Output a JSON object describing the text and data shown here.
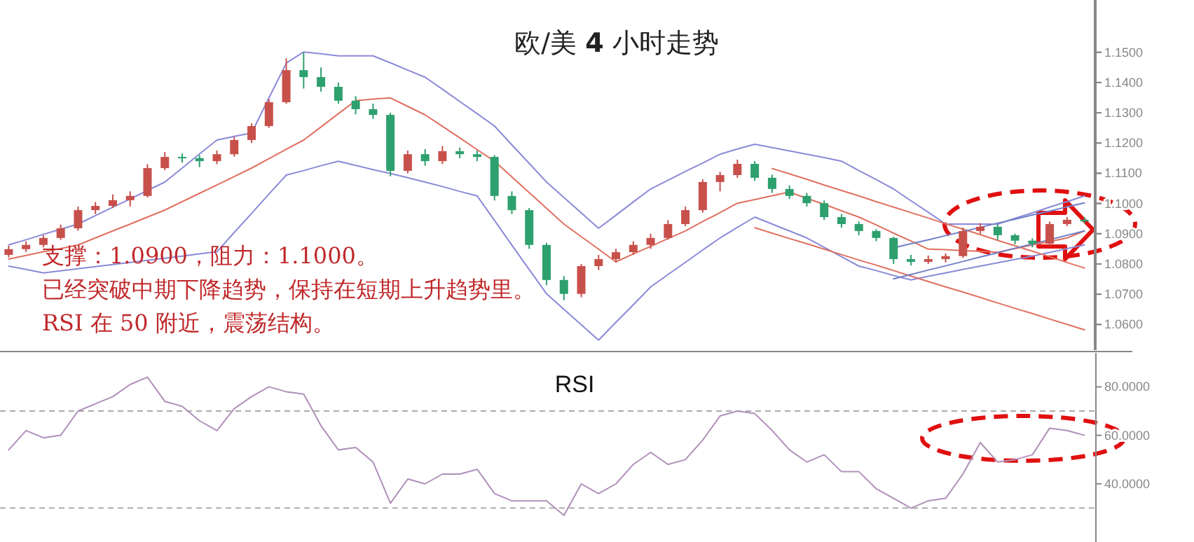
{
  "chart_data": [
    {
      "type": "candlestick",
      "title": "欧/美 **4** 小时走势",
      "ylim": [
        1.0515,
        1.1673
      ],
      "yticks": [
        {
          "value": 1.06,
          "label": "1.0600"
        },
        {
          "value": 1.07,
          "label": "1.0700"
        },
        {
          "value": 1.08,
          "label": "1.0800"
        },
        {
          "value": 1.09,
          "label": "1.0900"
        },
        {
          "value": 1.1,
          "label": "1.1000"
        },
        {
          "value": 1.11,
          "label": "1.1100"
        },
        {
          "value": 1.12,
          "label": "1.1200"
        },
        {
          "value": 1.13,
          "label": "1.1300"
        },
        {
          "value": 1.14,
          "label": "1.1400"
        },
        {
          "value": 1.15,
          "label": "1.1500"
        }
      ],
      "categories": [
        null,
        null,
        null,
        null,
        null,
        null,
        null,
        null,
        null,
        null,
        null,
        null,
        null,
        null,
        null,
        null,
        null,
        null,
        null,
        null,
        null,
        null,
        null,
        null,
        null,
        null,
        null,
        null,
        null,
        null,
        null,
        null,
        null,
        null,
        null,
        null,
        null,
        null,
        null,
        null,
        null,
        null,
        null,
        null,
        null,
        null,
        null,
        null,
        null,
        null,
        null,
        null,
        null,
        null,
        null,
        null,
        null,
        null,
        null,
        null,
        null,
        null,
        null
      ],
      "ohlc": [
        [
          1.083,
          1.086,
          1.0822,
          1.0849
        ],
        [
          1.0849,
          1.0875,
          1.084,
          1.0863
        ],
        [
          1.0863,
          1.0895,
          1.0855,
          1.0886
        ],
        [
          1.0886,
          1.093,
          1.088,
          1.0918
        ],
        [
          1.0918,
          1.099,
          1.091,
          1.0978
        ],
        [
          1.0978,
          1.1005,
          1.0965,
          1.0992
        ],
        [
          1.0992,
          1.103,
          1.0985,
          1.1011
        ],
        [
          1.1011,
          1.104,
          1.099,
          1.1025
        ],
        [
          1.1025,
          1.113,
          1.102,
          1.1117
        ],
        [
          1.1117,
          1.117,
          1.111,
          1.1154
        ],
        [
          1.1154,
          1.1165,
          1.1135,
          1.115
        ],
        [
          1.115,
          1.116,
          1.112,
          1.114
        ],
        [
          1.114,
          1.1175,
          1.113,
          1.1163
        ],
        [
          1.1163,
          1.122,
          1.1155,
          1.121
        ],
        [
          1.121,
          1.1265,
          1.12,
          1.1256
        ],
        [
          1.1256,
          1.1345,
          1.125,
          1.1335
        ],
        [
          1.1335,
          1.148,
          1.133,
          1.1441
        ],
        [
          1.1441,
          1.15,
          1.138,
          1.1418
        ],
        [
          1.1418,
          1.145,
          1.137,
          1.1386
        ],
        [
          1.1386,
          1.14,
          1.133,
          1.134
        ],
        [
          1.134,
          1.1355,
          1.1295,
          1.1312
        ],
        [
          1.1312,
          1.133,
          1.128,
          1.1293
        ],
        [
          1.1293,
          1.13,
          1.109,
          1.1108
        ],
        [
          1.1108,
          1.1175,
          1.11,
          1.1163
        ],
        [
          1.1163,
          1.118,
          1.1125,
          1.114
        ],
        [
          1.114,
          1.119,
          1.113,
          1.1173
        ],
        [
          1.1173,
          1.1185,
          1.115,
          1.1163
        ],
        [
          1.1163,
          1.1175,
          1.114,
          1.1154
        ],
        [
          1.1154,
          1.116,
          1.101,
          1.1025
        ],
        [
          1.1025,
          1.104,
          1.0965,
          1.0978
        ],
        [
          1.0978,
          1.0985,
          1.085,
          1.0863
        ],
        [
          1.0863,
          1.087,
          1.073,
          1.0747
        ],
        [
          1.0747,
          1.076,
          1.068,
          1.0701
        ],
        [
          1.0701,
          1.08,
          1.069,
          1.0793
        ],
        [
          1.0793,
          1.083,
          1.078,
          1.0816
        ],
        [
          1.0816,
          1.085,
          1.0805,
          1.0839
        ],
        [
          1.0839,
          1.0875,
          1.083,
          1.0863
        ],
        [
          1.0863,
          1.09,
          1.085,
          1.0886
        ],
        [
          1.0886,
          1.0945,
          1.088,
          1.0932
        ],
        [
          1.0932,
          1.099,
          1.0925,
          1.0978
        ],
        [
          1.0978,
          1.108,
          1.097,
          1.1071
        ],
        [
          1.1071,
          1.1105,
          1.104,
          1.1094
        ],
        [
          1.1094,
          1.1145,
          1.1085,
          1.1131
        ],
        [
          1.1131,
          1.114,
          1.1075,
          1.1085
        ],
        [
          1.1085,
          1.1095,
          1.1035,
          1.1048
        ],
        [
          1.1048,
          1.106,
          1.1015,
          1.1025
        ],
        [
          1.1025,
          1.1035,
          1.099,
          1.1001
        ],
        [
          1.1001,
          1.101,
          1.0945,
          1.0955
        ],
        [
          1.0955,
          1.0965,
          1.092,
          1.0932
        ],
        [
          1.0932,
          1.094,
          1.0895,
          1.0909
        ],
        [
          1.0909,
          1.0915,
          1.0875,
          1.0886
        ],
        [
          1.0886,
          1.089,
          1.08,
          1.0816
        ],
        [
          1.0816,
          1.083,
          1.0795,
          1.0807
        ],
        [
          1.0807,
          1.0828,
          1.08,
          1.0816
        ],
        [
          1.0816,
          1.0835,
          1.0805,
          1.0826
        ],
        [
          1.0826,
          1.092,
          1.082,
          1.0909
        ],
        [
          1.0909,
          1.0935,
          1.09,
          1.0923
        ],
        [
          1.0923,
          1.093,
          1.088,
          1.0895
        ],
        [
          1.0895,
          1.09,
          1.0865,
          1.0877
        ],
        [
          1.0877,
          1.0885,
          1.0855,
          1.0867
        ],
        [
          1.0867,
          1.094,
          1.086,
          1.0932
        ],
        [
          1.0932,
          1.0955,
          1.0925,
          1.0946
        ],
        [
          1.0946,
          1.0955,
          1.0935,
          1.0941
        ]
      ],
      "colors": [
        "#c8504b",
        "#c8504b",
        "#c8504b",
        "#c8504b",
        "#c8504b",
        "#c8504b",
        "#c8504b",
        "#c8504b",
        "#c8504b",
        "#c8504b",
        "#2ea06e",
        "#2ea06e",
        "#c8504b",
        "#c8504b",
        "#c8504b",
        "#c8504b",
        "#c8504b",
        "#2ea06e",
        "#2ea06e",
        "#2ea06e",
        "#2ea06e",
        "#2ea06e",
        "#2ea06e",
        "#c8504b",
        "#2ea06e",
        "#c8504b",
        "#2ea06e",
        "#2ea06e",
        "#2ea06e",
        "#2ea06e",
        "#2ea06e",
        "#2ea06e",
        "#2ea06e",
        "#c8504b",
        "#c8504b",
        "#c8504b",
        "#c8504b",
        "#c8504b",
        "#c8504b",
        "#c8504b",
        "#c8504b",
        "#c8504b",
        "#c8504b",
        "#2ea06e",
        "#2ea06e",
        "#2ea06e",
        "#2ea06e",
        "#2ea06e",
        "#2ea06e",
        "#2ea06e",
        "#2ea06e",
        "#2ea06e",
        "#2ea06e",
        "#c8504b",
        "#c8504b",
        "#c8504b",
        "#c8504b",
        "#2ea06e",
        "#2ea06e",
        "#2ea06e",
        "#c8504b",
        "#c8504b",
        "#2ea06e"
      ],
      "annotations": [
        "支撑：1.0900，阻力：1.1000。",
        "已经突破中期下降趋势，保持在短期上升趋势里。",
        "RSI 在 50 附近，震荡结构。"
      ]
    },
    {
      "type": "line",
      "tick_labels": false,
      "ylim": [
        1.0515,
        1.1673
      ],
      "yticks": [
        {
          "value": 1.06,
          "label": null
        },
        {
          "value": 1.07,
          "label": null
        },
        {
          "value": 1.08,
          "label": null
        },
        {
          "value": 1.09,
          "label": null
        },
        {
          "value": 1.1,
          "label": null
        },
        {
          "value": 1.11,
          "label": null
        },
        {
          "value": 1.12,
          "label": null
        },
        {
          "value": 1.13,
          "label": null
        },
        {
          "value": 1.14,
          "label": null
        },
        {
          "value": 1.15,
          "label": null
        }
      ],
      "categories": [
        null,
        null,
        null,
        null,
        null,
        null,
        null,
        null,
        null,
        null,
        null,
        null,
        null,
        null,
        null,
        null,
        null,
        null,
        null,
        null,
        null,
        null,
        null,
        null,
        null,
        null,
        null,
        null,
        null,
        null,
        null,
        null,
        null,
        null,
        null,
        null,
        null,
        null,
        null,
        null,
        null,
        null,
        null,
        null,
        null,
        null,
        null,
        null,
        null,
        null,
        null,
        null,
        null,
        null,
        null,
        null,
        null,
        null,
        null,
        null,
        null,
        null,
        null
      ],
      "series": [
        {
          "color": "#8a8ad8",
          "values": [
            1.0863,
            1.088,
            1.0898,
            1.0915,
            1.0932,
            1.096,
            1.0988,
            1.1015,
            1.1043,
            1.1071,
            1.1117,
            1.1164,
            1.121,
            1.1222,
            1.1233,
            1.1349,
            1.1464,
            1.1501,
            1.1495,
            1.1488,
            1.1488,
            1.1488,
            1.1465,
            1.1441,
            1.1418,
            1.1378,
            1.1337,
            1.1297,
            1.1256,
            1.1194,
            1.1133,
            1.1071,
            1.102,
            1.0969,
            1.0918,
            1.0961,
            1.1005,
            1.1048,
            1.1077,
            1.1106,
            1.1134,
            1.1163,
            1.118,
            1.1196,
            1.1185,
            1.1174,
            1.1163,
            1.1152,
            1.114,
            1.1109,
            1.1079,
            1.1048,
            1.1009,
            1.0971,
            1.0932,
            1.0932,
            1.0932,
            1.0932,
            1.0951,
            1.0969,
            1.0988,
            1.1006,
            1.1025
          ]
        },
        {
          "color": "#e07060",
          "values": [
            1.0816,
            1.0828,
            1.084,
            1.0851,
            1.0863,
            1.0886,
            1.0909,
            1.0932,
            1.0955,
            1.0978,
            1.1006,
            1.1034,
            1.1061,
            1.1089,
            1.1117,
            1.1148,
            1.1179,
            1.121,
            1.1253,
            1.1297,
            1.134,
            1.1345,
            1.1349,
            1.1321,
            1.1293,
            1.1255,
            1.1217,
            1.1178,
            1.114,
            1.1088,
            1.1036,
            1.0984,
            1.0932,
            1.089,
            1.0849,
            1.0807,
            1.0833,
            1.0858,
            1.0884,
            1.0909,
            1.094,
            1.097,
            1.1001,
            1.1013,
            1.1026,
            1.1038,
            1.1017,
            1.0997,
            1.0976,
            1.0955,
            1.0929,
            1.0902,
            1.0876,
            1.0849,
            1.0847,
            1.0844,
            1.0842,
            1.0839,
            1.0851,
            1.0863,
            1.0874,
            1.0886,
            1.0909
          ]
        },
        {
          "color": "#8a8ad8",
          "values": [
            1.0793,
            1.0782,
            1.077,
            1.0777,
            1.0784,
            1.0791,
            1.0798,
            1.0805,
            1.0812,
            1.0819,
            1.0826,
            1.0833,
            1.084,
            1.0904,
            1.0967,
            1.1031,
            1.1094,
            1.1109,
            1.1125,
            1.114,
            1.1126,
            1.1112,
            1.1099,
            1.1085,
            1.1071,
            1.1056,
            1.104,
            1.1025,
            1.0944,
            1.0863,
            1.0782,
            1.0701,
            1.065,
            1.0599,
            1.0548,
            1.0607,
            1.0665,
            1.0724,
            1.0765,
            1.0805,
            1.0846,
            1.0886,
            1.0921,
            1.0955,
            1.0932,
            1.0909,
            1.0886,
            1.0855,
            1.0824,
            1.0793,
            1.0778,
            1.0762,
            1.0747,
            1.0759,
            1.077,
            1.0782,
            1.0793,
            1.0804,
            1.0815,
            1.0826,
            1.0838,
            1.0851,
            1.0863
          ]
        },
        {
          "color": "#e07060",
          "values": [
            null,
            null,
            null,
            null,
            null,
            null,
            null,
            null,
            null,
            null,
            null,
            null,
            null,
            null,
            null,
            null,
            null,
            null,
            null,
            null,
            null,
            null,
            null,
            null,
            null,
            null,
            null,
            null,
            null,
            null,
            null,
            null,
            null,
            null,
            null,
            null,
            null,
            null,
            null,
            null,
            null,
            null,
            null,
            null,
            1.1116,
            1.1098,
            1.108,
            1.1061,
            1.1043,
            1.1025,
            1.1006,
            1.0988,
            1.097,
            1.0952,
            1.0933,
            1.0915,
            1.0897,
            1.0878,
            1.086,
            1.0842,
            1.0824,
            1.0805,
            1.0787
          ]
        },
        {
          "color": "#e07060",
          "values": [
            null,
            null,
            null,
            null,
            null,
            null,
            null,
            null,
            null,
            null,
            null,
            null,
            null,
            null,
            null,
            null,
            null,
            null,
            null,
            null,
            null,
            null,
            null,
            null,
            null,
            null,
            null,
            null,
            null,
            null,
            null,
            null,
            null,
            null,
            null,
            null,
            null,
            null,
            null,
            null,
            null,
            null,
            null,
            1.092,
            1.0902,
            1.0884,
            1.0867,
            1.0849,
            1.0831,
            1.0813,
            1.0796,
            1.0778,
            1.076,
            1.0742,
            1.0724,
            1.0707,
            1.0689,
            1.0671,
            1.0653,
            1.0636,
            1.0618,
            1.06,
            1.0582
          ]
        },
        {
          "color": "#7080c8",
          "values": [
            null,
            null,
            null,
            null,
            null,
            null,
            null,
            null,
            null,
            null,
            null,
            null,
            null,
            null,
            null,
            null,
            null,
            null,
            null,
            null,
            null,
            null,
            null,
            null,
            null,
            null,
            null,
            null,
            null,
            null,
            null,
            null,
            null,
            null,
            null,
            null,
            null,
            null,
            null,
            null,
            null,
            null,
            null,
            null,
            null,
            null,
            null,
            null,
            null,
            null,
            null,
            1.0751,
            1.0765,
            1.078,
            1.0794,
            1.0808,
            1.0823,
            1.0837,
            1.0852,
            1.0866,
            1.088,
            1.0895,
            1.0909
          ]
        },
        {
          "color": "#7080c8",
          "values": [
            null,
            null,
            null,
            null,
            null,
            null,
            null,
            null,
            null,
            null,
            null,
            null,
            null,
            null,
            null,
            null,
            null,
            null,
            null,
            null,
            null,
            null,
            null,
            null,
            null,
            null,
            null,
            null,
            null,
            null,
            null,
            null,
            null,
            null,
            null,
            null,
            null,
            null,
            null,
            null,
            null,
            null,
            null,
            null,
            null,
            null,
            null,
            null,
            null,
            null,
            null,
            1.0853,
            1.0867,
            1.088,
            1.0894,
            1.0907,
            1.0921,
            1.0935,
            1.0948,
            1.0962,
            1.0975,
            1.0989,
            1.1002
          ]
        }
      ]
    },
    {
      "type": "line",
      "title": "RSI",
      "ylim": [
        16,
        94
      ],
      "yticks": [
        {
          "value": 40,
          "label": "40.0000"
        },
        {
          "value": 60,
          "label": "60.0000"
        },
        {
          "value": 80,
          "label": "80.0000"
        }
      ],
      "categories": [
        null,
        null,
        null,
        null,
        null,
        null,
        null,
        null,
        null,
        null,
        null,
        null,
        null,
        null,
        null,
        null,
        null,
        null,
        null,
        null,
        null,
        null,
        null,
        null,
        null,
        null,
        null,
        null,
        null,
        null,
        null,
        null,
        null,
        null,
        null,
        null,
        null,
        null,
        null,
        null,
        null,
        null,
        null,
        null,
        null,
        null,
        null,
        null,
        null,
        null,
        null,
        null,
        null,
        null,
        null,
        null,
        null,
        null,
        null,
        null,
        null,
        null,
        null
      ],
      "ref_lines": [
        {
          "axis": "y",
          "value": 70,
          "color": "#aaaaaa",
          "line_style": "dashed"
        },
        {
          "axis": "y",
          "value": 30,
          "color": "#aaaaaa",
          "line_style": "dashed"
        }
      ],
      "series": [
        {
          "color": "#b090b8",
          "values": [
            54,
            62,
            59,
            60,
            70,
            73,
            76,
            81,
            84,
            74,
            72,
            66,
            62,
            71,
            76,
            80,
            78,
            77,
            64,
            54,
            55,
            49,
            32,
            42,
            40,
            44,
            44,
            46,
            36,
            33,
            33,
            33,
            27,
            40,
            36,
            40,
            48,
            53,
            48,
            50,
            58,
            68,
            70,
            69,
            62,
            54,
            49,
            52,
            45,
            45,
            38,
            34,
            30,
            33,
            34,
            44,
            57,
            49,
            50,
            52,
            63,
            62,
            60
          ]
        }
      ]
    }
  ]
}
